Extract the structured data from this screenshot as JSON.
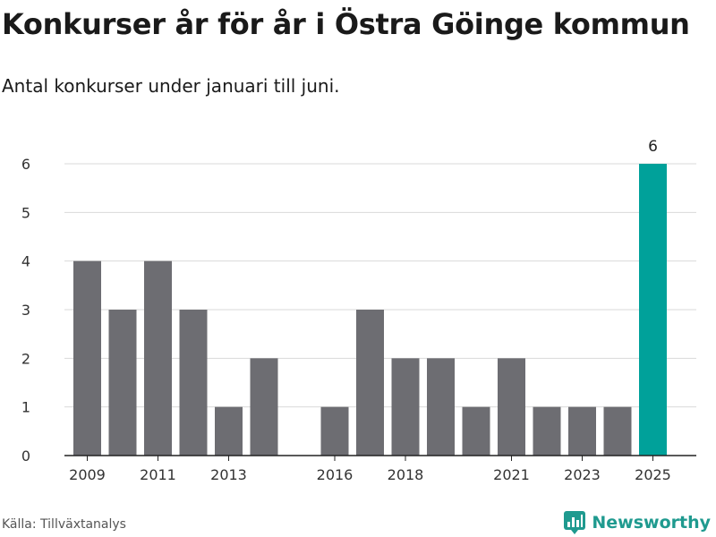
{
  "header": {
    "title": "Konkurser år för år i Östra Göinge kommun",
    "subtitle": "Antal konkurser under januari till juni."
  },
  "footer": {
    "source": "Källa: Tillväxtanalys",
    "brand": "Newsworthy",
    "brand_icon": "newsworthy-logo-icon"
  },
  "colors": {
    "bar": "#6d6d72",
    "highlight": "#00a19a",
    "brand": "#1f9a8f"
  },
  "chart_data": {
    "type": "bar",
    "categories": [
      "2009",
      "2010",
      "2011",
      "2012",
      "2013",
      "2014",
      "2015",
      "2016",
      "2017",
      "2018",
      "2019",
      "2020",
      "2021",
      "2022",
      "2023",
      "2024",
      "2025"
    ],
    "values": [
      4,
      3,
      4,
      3,
      1,
      2,
      0,
      1,
      3,
      2,
      2,
      1,
      2,
      1,
      1,
      1,
      6
    ],
    "xtick_labels": [
      "2009",
      "2011",
      "2013",
      "2016",
      "2018",
      "2021",
      "2023",
      "2025"
    ],
    "ylim": [
      0,
      6
    ],
    "yticks": [
      0,
      1,
      2,
      3,
      4,
      5,
      6
    ],
    "highlight_category": "2025",
    "data_labels": [
      {
        "category": "2025",
        "text": "6"
      }
    ],
    "grid": true,
    "legend": "none"
  }
}
